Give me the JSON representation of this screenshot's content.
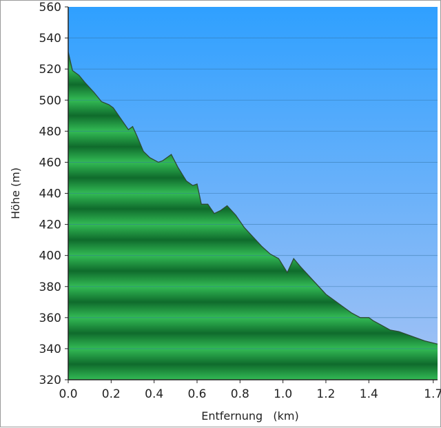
{
  "chart_data": {
    "type": "area",
    "xlabel": "Entfernung   (km)",
    "ylabel": "Höhe (m)",
    "xlim": [
      0,
      1.72
    ],
    "ylim": [
      320,
      560
    ],
    "x_ticks": [
      0.0,
      0.2,
      0.4,
      0.6,
      0.8,
      1.0,
      1.2,
      1.4,
      1.7
    ],
    "x_tick_labels": [
      "0.0",
      "0.2",
      "0.4",
      "0.6",
      "0.8",
      "1.0",
      "1.2",
      "1.4",
      "1.7"
    ],
    "y_ticks": [
      320,
      340,
      360,
      380,
      400,
      420,
      440,
      460,
      480,
      500,
      520,
      540,
      560
    ],
    "grid": true,
    "series": [
      {
        "x": [
          0.0,
          0.02,
          0.05,
          0.08,
          0.12,
          0.155,
          0.19,
          0.21,
          0.24,
          0.28,
          0.3,
          0.32,
          0.35,
          0.38,
          0.42,
          0.44,
          0.48,
          0.51,
          0.55,
          0.58,
          0.6,
          0.62,
          0.65,
          0.68,
          0.71,
          0.74,
          0.78,
          0.82,
          0.86,
          0.9,
          0.94,
          0.98,
          1.02,
          1.05,
          1.08,
          1.12,
          1.16,
          1.2,
          1.24,
          1.28,
          1.32,
          1.36,
          1.4,
          1.42,
          1.46,
          1.5,
          1.54,
          1.58,
          1.62,
          1.66,
          1.72
        ],
        "y": [
          531,
          519,
          516,
          511,
          505,
          499,
          497,
          495,
          489,
          481,
          483,
          477,
          467,
          463,
          460,
          461,
          465,
          457,
          448,
          445,
          446,
          433,
          433,
          427,
          429,
          432,
          426,
          418,
          412,
          406,
          401,
          398,
          389,
          398,
          393,
          387,
          381,
          375,
          371,
          367,
          363,
          360,
          360,
          358,
          355,
          352,
          351,
          349,
          347,
          345,
          343
        ]
      }
    ]
  },
  "colors": {
    "sky_top": "#2fa0ff",
    "sky_bottom": "#a6c3f4",
    "fill_dark": "#0f6b2c",
    "fill_light": "#33bb55",
    "outline": "#2d4a33",
    "grid": "#2f6f9e"
  }
}
